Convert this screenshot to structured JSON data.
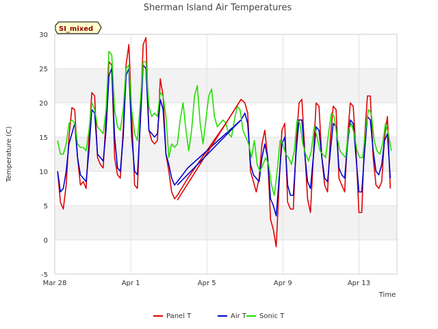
{
  "chart_data": {
    "type": "line",
    "title": "Sherman Island Air Temperatures",
    "xlabel": "Time",
    "ylabel": "Temperature (C)",
    "badge": "SI_mixed",
    "ylim": [
      -5,
      30
    ],
    "xlim": [
      "Mar 28",
      "Apr 15"
    ],
    "x_tick_labels": [
      "Mar 28",
      "Apr 1",
      "Apr 5",
      "Apr 9",
      "Apr 13"
    ],
    "x_tick_days": [
      0,
      4,
      8,
      12,
      16
    ],
    "y_ticks": [
      -5,
      0,
      5,
      10,
      15,
      20,
      25,
      30
    ],
    "grid": true,
    "legend_position": "bottom",
    "series": [
      {
        "name": "Panel T",
        "color": "#dd0000",
        "x": [
          0.15,
          0.3,
          0.45,
          0.6,
          0.75,
          0.9,
          1.05,
          1.2,
          1.35,
          1.5,
          1.65,
          1.8,
          1.95,
          2.1,
          2.25,
          2.4,
          2.55,
          2.7,
          2.85,
          3.0,
          3.15,
          3.3,
          3.45,
          3.6,
          3.75,
          3.9,
          4.05,
          4.2,
          4.35,
          4.5,
          4.65,
          4.8,
          4.95,
          5.1,
          5.25,
          5.4,
          5.55,
          5.7,
          5.85,
          6.0,
          6.15,
          6.3,
          6.45,
          7.0,
          8.0,
          9.0,
          9.8,
          10.0,
          10.15,
          10.3,
          10.45,
          10.6,
          10.75,
          10.9,
          11.05,
          11.2,
          11.35,
          11.5,
          11.65,
          11.8,
          11.95,
          12.1,
          12.25,
          12.4,
          12.55,
          12.7,
          12.85,
          13.0,
          13.15,
          13.3,
          13.45,
          13.6,
          13.75,
          13.9,
          14.05,
          14.2,
          14.35,
          14.5,
          14.65,
          14.8,
          14.95,
          15.1,
          15.25,
          15.4,
          15.55,
          15.7,
          15.85,
          16.0,
          16.15,
          16.3,
          16.45,
          16.6,
          16.75,
          16.9,
          17.05,
          17.2,
          17.35,
          17.5,
          17.65
        ],
        "y": [
          10.0,
          5.5,
          4.5,
          8.0,
          15.0,
          19.3,
          19.0,
          12.0,
          8.0,
          8.5,
          7.5,
          15.0,
          21.5,
          21.0,
          12.0,
          11.0,
          10.5,
          18.0,
          26.0,
          25.5,
          12.0,
          9.5,
          9.0,
          16.0,
          25.5,
          28.5,
          18.0,
          8.0,
          7.5,
          18.0,
          28.5,
          29.5,
          16.0,
          14.5,
          14.0,
          14.5,
          23.5,
          21.0,
          12.5,
          10.0,
          7.0,
          6.0,
          6.5,
          9.0,
          13.0,
          17.0,
          20.5,
          20.0,
          18.5,
          10.0,
          8.5,
          7.0,
          9.0,
          14.0,
          16.0,
          12.0,
          3.0,
          1.5,
          -1.0,
          8.0,
          16.0,
          17.0,
          5.5,
          4.5,
          4.5,
          14.0,
          20.0,
          20.5,
          13.0,
          6.0,
          4.0,
          12.0,
          20.0,
          19.5,
          12.0,
          8.0,
          7.0,
          15.0,
          19.5,
          19.0,
          9.0,
          8.0,
          7.0,
          15.0,
          20.0,
          19.5,
          13.0,
          4.0,
          4.0,
          15.0,
          21.0,
          21.0,
          12.0,
          8.0,
          7.5,
          8.5,
          15.0,
          18.0,
          7.5
        ]
      },
      {
        "name": "Air T",
        "color": "#0000cc",
        "x": [
          0.15,
          0.3,
          0.45,
          0.6,
          0.75,
          0.9,
          1.05,
          1.2,
          1.35,
          1.5,
          1.65,
          1.8,
          1.95,
          2.1,
          2.25,
          2.4,
          2.55,
          2.7,
          2.85,
          3.0,
          3.15,
          3.3,
          3.45,
          3.6,
          3.75,
          3.9,
          4.05,
          4.2,
          4.35,
          4.5,
          4.65,
          4.8,
          4.95,
          5.1,
          5.25,
          5.4,
          5.55,
          5.7,
          5.85,
          6.0,
          6.15,
          6.3,
          6.45,
          7.0,
          8.0,
          9.0,
          9.8,
          10.0,
          10.15,
          10.3,
          10.45,
          10.6,
          10.75,
          10.9,
          11.05,
          11.2,
          11.35,
          11.5,
          11.65,
          11.8,
          11.95,
          12.1,
          12.25,
          12.4,
          12.55,
          12.7,
          12.85,
          13.0,
          13.15,
          13.3,
          13.45,
          13.6,
          13.75,
          13.9,
          14.05,
          14.2,
          14.35,
          14.5,
          14.65,
          14.8,
          14.95,
          15.1,
          15.25,
          15.4,
          15.55,
          15.7,
          15.85,
          16.0,
          16.15,
          16.3,
          16.45,
          16.6,
          16.75,
          16.9,
          17.05,
          17.2,
          17.35,
          17.5,
          17.65
        ],
        "y": [
          10.0,
          7.0,
          7.5,
          10.0,
          14.0,
          15.5,
          17.0,
          12.0,
          9.5,
          9.0,
          8.5,
          13.0,
          19.0,
          18.5,
          12.5,
          12.0,
          11.5,
          16.0,
          24.0,
          25.0,
          15.0,
          10.5,
          10.0,
          15.0,
          24.0,
          25.0,
          15.0,
          10.0,
          9.5,
          17.0,
          25.5,
          25.0,
          16.0,
          15.5,
          15.0,
          15.5,
          20.5,
          19.0,
          12.5,
          11.0,
          9.0,
          8.0,
          8.5,
          10.5,
          13.0,
          15.5,
          17.5,
          18.5,
          17.0,
          11.0,
          9.5,
          9.0,
          8.5,
          12.0,
          14.0,
          12.0,
          6.0,
          5.0,
          3.5,
          9.0,
          14.0,
          15.0,
          8.0,
          6.5,
          6.5,
          13.0,
          17.5,
          17.5,
          12.5,
          8.5,
          7.5,
          12.0,
          16.5,
          16.0,
          12.0,
          9.0,
          8.5,
          13.0,
          17.0,
          16.5,
          10.5,
          9.5,
          9.0,
          14.0,
          17.5,
          17.0,
          12.0,
          7.0,
          7.0,
          13.0,
          18.0,
          17.5,
          13.0,
          10.0,
          9.5,
          11.0,
          14.5,
          15.5,
          9.0
        ]
      },
      {
        "name": "Sonic T",
        "color": "#22dd00",
        "x": [
          0.15,
          0.3,
          0.45,
          0.6,
          0.75,
          0.9,
          1.05,
          1.2,
          1.35,
          1.5,
          1.65,
          1.8,
          1.95,
          2.1,
          2.25,
          2.4,
          2.55,
          2.7,
          2.85,
          3.0,
          3.15,
          3.3,
          3.45,
          3.6,
          3.75,
          3.9,
          4.05,
          4.2,
          4.35,
          4.5,
          4.65,
          4.8,
          4.95,
          5.1,
          5.25,
          5.4,
          5.55,
          5.7,
          5.85,
          6.0,
          6.15,
          6.3,
          6.45,
          6.6,
          6.75,
          6.9,
          7.05,
          7.2,
          7.35,
          7.5,
          7.65,
          7.8,
          7.95,
          8.1,
          8.25,
          8.4,
          8.55,
          8.7,
          8.85,
          9.0,
          9.15,
          9.3,
          9.45,
          9.6,
          9.75,
          9.9,
          10.05,
          10.2,
          10.35,
          10.5,
          10.65,
          10.8,
          10.95,
          11.1,
          11.25,
          11.4,
          11.55,
          11.7,
          11.85,
          12.0,
          12.15,
          12.3,
          12.45,
          12.6,
          12.75,
          12.9,
          13.05,
          13.2,
          13.35,
          13.5,
          13.65,
          13.8,
          13.95,
          14.1,
          14.25,
          14.4,
          14.55,
          14.7,
          14.85,
          15.0,
          15.15,
          15.3,
          15.45,
          15.6,
          15.75,
          15.9,
          16.05,
          16.2,
          16.35,
          16.5,
          16.65,
          16.8,
          16.95,
          17.1,
          17.25,
          17.4,
          17.55,
          17.7
        ],
        "y": [
          14.5,
          12.5,
          12.5,
          14.0,
          17.0,
          17.5,
          17.0,
          14.0,
          13.5,
          13.5,
          13.0,
          16.0,
          20.0,
          19.0,
          16.5,
          16.0,
          15.5,
          19.0,
          27.5,
          27.0,
          19.0,
          16.5,
          16.0,
          19.0,
          25.0,
          25.5,
          19.0,
          15.5,
          14.5,
          20.0,
          26.0,
          26.0,
          19.5,
          18.0,
          18.5,
          18.0,
          21.5,
          21.0,
          18.0,
          12.0,
          14.0,
          13.5,
          14.0,
          17.5,
          20.0,
          16.0,
          13.0,
          16.0,
          21.0,
          22.5,
          17.0,
          14.0,
          17.5,
          21.0,
          22.0,
          18.0,
          16.5,
          17.0,
          17.5,
          17.0,
          15.5,
          15.0,
          17.5,
          19.5,
          19.0,
          16.0,
          15.0,
          14.0,
          12.0,
          14.5,
          11.0,
          10.0,
          11.0,
          12.0,
          11.0,
          8.0,
          6.5,
          10.0,
          14.5,
          14.0,
          12.5,
          12.0,
          11.0,
          13.0,
          17.5,
          17.0,
          14.0,
          12.5,
          11.5,
          13.0,
          16.5,
          15.0,
          13.0,
          12.5,
          12.0,
          15.5,
          18.5,
          18.0,
          15.0,
          13.0,
          12.5,
          12.0,
          16.0,
          17.0,
          15.5,
          13.0,
          12.0,
          12.0,
          16.0,
          19.0,
          18.5,
          14.5,
          13.0,
          12.5,
          14.0,
          17.0,
          15.5,
          13.0
        ]
      },
      {
        "name": "",
        "color": "#dd0000",
        "x": [
          6.45,
          9.8
        ],
        "y": [
          5.8,
          20.5
        ]
      },
      {
        "name": "",
        "color": "#0000cc",
        "x": [
          6.45,
          9.8
        ],
        "y": [
          8.0,
          17.5
        ]
      }
    ]
  }
}
